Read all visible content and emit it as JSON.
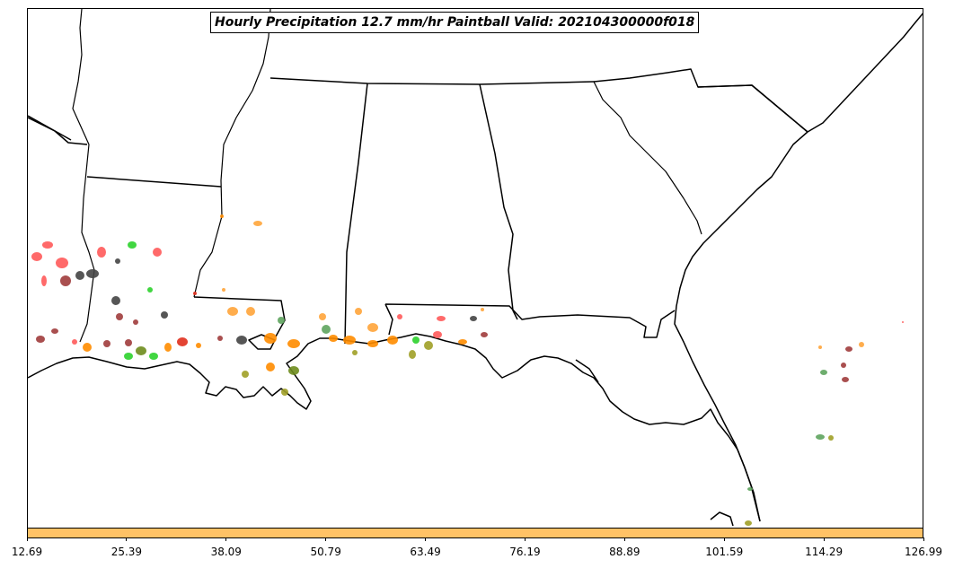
{
  "title": "Hourly Precipitation 12.7 mm/hr Paintball Valid: 202104300000f018",
  "map": {
    "region": "Southeastern United States",
    "projection_frame_color": "#000000",
    "land_color": "#ffffff",
    "border_color": "#000000"
  },
  "paintball_colors": [
    "#ff5a5a",
    "#ff8c00",
    "#ffa53a",
    "#e1301e",
    "#2dd22d",
    "#5fa55f",
    "#6e8c1e",
    "#a0a028",
    "#444444",
    "#a03c3c"
  ],
  "colorbar": {
    "fill_color": "#ffc266",
    "ticks": [
      "12.69",
      "25.39",
      "38.09",
      "50.79",
      "63.49",
      "76.19",
      "88.89",
      "101.59",
      "114.29",
      "126.99"
    ]
  }
}
